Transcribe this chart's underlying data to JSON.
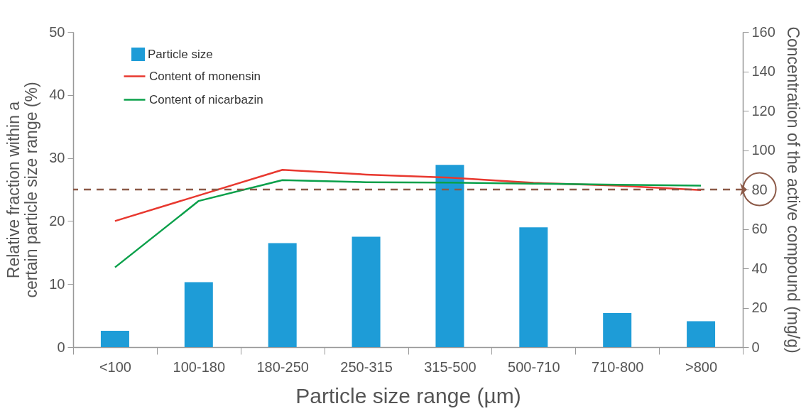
{
  "chart_data": {
    "type": "bar",
    "xlabel": "Particle size range (µm)",
    "ylabel": "Relative fraction within a certain particle size range (%)",
    "y2label": "Concentration of the active compound (mg/g)",
    "categories": [
      "<100",
      "100-180",
      "180-250",
      "250-315",
      "315-500",
      "500-710",
      "710-800",
      ">800"
    ],
    "series": [
      {
        "name": "Particle size",
        "type": "bar",
        "color": "#1e9cd7",
        "values": [
          2.6,
          10.3,
          16.5,
          17.5,
          28.9,
          19.0,
          5.4,
          4.1
        ]
      },
      {
        "name": "Content of monensin",
        "type": "line",
        "axis": "y2",
        "color": "#e8382f",
        "values": [
          64,
          77,
          90,
          87.6,
          86,
          83.4,
          82,
          79.7
        ]
      },
      {
        "name": "Content of nicarbazin",
        "type": "line",
        "axis": "y2",
        "color": "#0aa04a",
        "values": [
          40.5,
          74.2,
          84.8,
          83.7,
          83.5,
          83,
          82.4,
          82
        ]
      }
    ],
    "ylim": [
      0,
      50
    ],
    "yticks": [
      0,
      10,
      20,
      30,
      40,
      50
    ],
    "y2lim": [
      0,
      160
    ],
    "y2ticks": [
      0,
      20,
      40,
      60,
      80,
      100,
      120,
      140,
      160
    ],
    "ref_lines": [
      {
        "axis": "y2",
        "value": 80,
        "color": "#8c5a48",
        "line_style": "dashed"
      }
    ],
    "legend": "top left"
  }
}
